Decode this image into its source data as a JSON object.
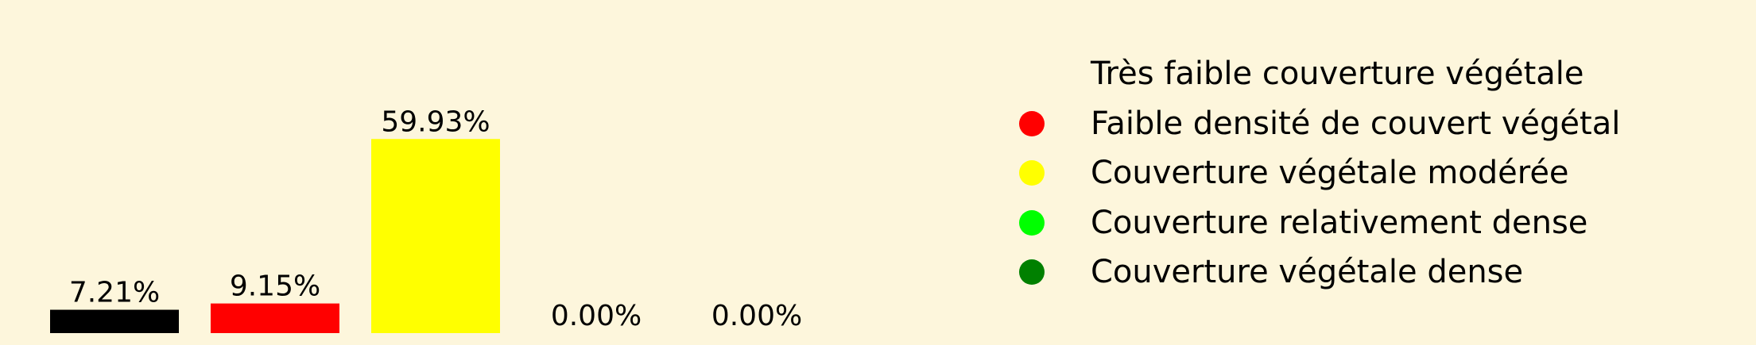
{
  "colors": {
    "background": "#fdf6dc",
    "text": "#000000"
  },
  "chart_data": {
    "type": "bar",
    "title": "",
    "xlabel": "",
    "ylabel": "",
    "ylim": [
      0,
      60
    ],
    "grid": false,
    "legend_placement": "right",
    "categories": [
      "Très faible couverture végétale",
      "Faible densité de couvert végétal",
      "Couverture végétale modérée",
      "Couverture relativement dense",
      "Couverture végétale dense"
    ],
    "values": [
      7.21,
      9.15,
      59.93,
      0.0,
      0.0
    ],
    "data_labels": [
      "7.21%",
      "9.15%",
      "59.93%",
      "0.00%",
      "0.00%"
    ],
    "colors": [
      "#000000",
      "#ff0000",
      "#ffff00",
      "#00ff00",
      "#008000"
    ],
    "legend": [
      {
        "label": "Très faible couverture végétale",
        "color": "#fdf6dc"
      },
      {
        "label": "Faible densité de couvert végétal",
        "color": "#ff0000"
      },
      {
        "label": "Couverture végétale modérée",
        "color": "#ffff00"
      },
      {
        "label": "Couverture relativement dense",
        "color": "#00ff00"
      },
      {
        "label": "Couverture végétale dense",
        "color": "#008000"
      }
    ]
  }
}
